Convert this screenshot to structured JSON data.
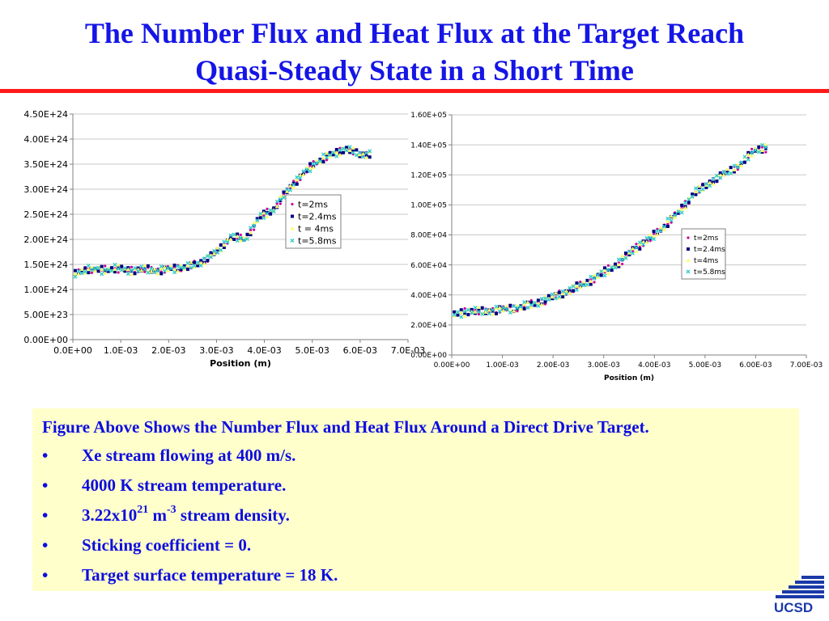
{
  "slide": {
    "title_line1": "The Number Flux and Heat Flux at the Target Reach",
    "title_line2": "Quasi-Steady State in a Short Time",
    "rule_color": "#ff1a1a",
    "title_color": "#1515e6"
  },
  "textbox": {
    "lead": "Figure Above Shows the Number Flux and Heat Flux Around a Direct Drive Target.",
    "bullet_symbol": "•",
    "bullet1": "Xe stream flowing at 400 m/s.",
    "bullet2": "4000 K stream temperature.",
    "bullet3_prefix": "3.22x10",
    "bullet3_sup1": "21",
    "bullet3_mid": " m",
    "bullet3_sup2": "-3",
    "bullet3_suffix": " stream density.",
    "bullet4": "Sticking coefficient = 0.",
    "bullet5": "Target surface temperature = 18 K."
  },
  "logo": {
    "text": "UCSD",
    "icon": "ucsd-wave-logo-icon"
  },
  "chart_data": [
    {
      "type": "scatter",
      "title": "",
      "xlabel": "Position (m)",
      "ylabel": "",
      "xlim": [
        0,
        0.007
      ],
      "ylim": [
        0,
        4.5e+24
      ],
      "grid": "horizontal",
      "legend_position": "center-right",
      "x_tick_labels": [
        "0.0E+00",
        "1.0E-03",
        "2.0E-03",
        "3.0E-03",
        "4.0E-03",
        "5.0E-03",
        "6.0E-03",
        "7.0E-03"
      ],
      "y_tick_labels": [
        "0.00E+00",
        "5.00E+23",
        "1.00E+24",
        "1.50E+24",
        "2.00E+24",
        "2.50E+24",
        "3.00E+24",
        "3.50E+24",
        "4.00E+24",
        "4.50E+24"
      ],
      "series": [
        {
          "name": "t=2ms",
          "color": "#cc0099",
          "marker": "point"
        },
        {
          "name": "t=2.4ms",
          "color": "#000080",
          "marker": "square"
        },
        {
          "name": "t = 4ms",
          "color": "#ffff66",
          "marker": "triangle"
        },
        {
          "name": "t=5.8ms",
          "color": "#33cccc",
          "marker": "x"
        }
      ],
      "x": [
        5e-05,
        0.0003,
        0.0006,
        0.0009,
        0.0012,
        0.0015,
        0.0018,
        0.0021,
        0.0024,
        0.0027,
        0.003,
        0.0033,
        0.0036,
        0.0039,
        0.0042,
        0.0045,
        0.0048,
        0.0051,
        0.0054,
        0.0057,
        0.006,
        0.0062
      ],
      "y_trend": [
        1.3e+24,
        1.42e+24,
        1.38e+24,
        1.42e+24,
        1.38e+24,
        1.4e+24,
        1.38e+24,
        1.42e+24,
        1.45e+24,
        1.55e+24,
        1.75e+24,
        2.05e+24,
        2e+24,
        2.45e+24,
        2.6e+24,
        3e+24,
        3.3e+24,
        3.55e+24,
        3.7e+24,
        3.8e+24,
        3.7e+24,
        3.7e+24
      ]
    },
    {
      "type": "scatter",
      "title": "",
      "xlabel": "Position (m)",
      "ylabel": "",
      "xlim": [
        0,
        0.007
      ],
      "ylim": [
        0,
        160000
      ],
      "grid": "horizontal",
      "legend_position": "center-right",
      "x_tick_labels": [
        "0.00E+00",
        "1.00E-03",
        "2.00E-03",
        "3.00E-03",
        "4.00E-03",
        "5.00E-03",
        "6.00E-03",
        "7.00E-03"
      ],
      "y_tick_labels": [
        "0.00E+00",
        "2.00E+04",
        "4.00E+04",
        "6.00E+04",
        "8.00E+04",
        "1.00E+05",
        "1.20E+05",
        "1.40E+05",
        "1.60E+05"
      ],
      "series": [
        {
          "name": "t=2ms",
          "color": "#cc0099",
          "marker": "point"
        },
        {
          "name": "t=2.4ms",
          "color": "#000080",
          "marker": "square"
        },
        {
          "name": "t=4ms",
          "color": "#ffff66",
          "marker": "triangle"
        },
        {
          "name": "t=5.8ms",
          "color": "#33cccc",
          "marker": "x"
        }
      ],
      "x": [
        5e-05,
        0.0003,
        0.0006,
        0.0009,
        0.0012,
        0.0015,
        0.0018,
        0.0021,
        0.0024,
        0.0027,
        0.003,
        0.0033,
        0.0036,
        0.0039,
        0.0042,
        0.0045,
        0.0048,
        0.0051,
        0.0054,
        0.0057,
        0.006,
        0.0062
      ],
      "y_trend": [
        27000,
        29000,
        29000,
        30000,
        31000,
        33000,
        36000,
        40000,
        44000,
        49000,
        55000,
        61000,
        71000,
        77000,
        86000,
        96000,
        108000,
        115000,
        121000,
        127000,
        137000,
        138000
      ]
    }
  ]
}
